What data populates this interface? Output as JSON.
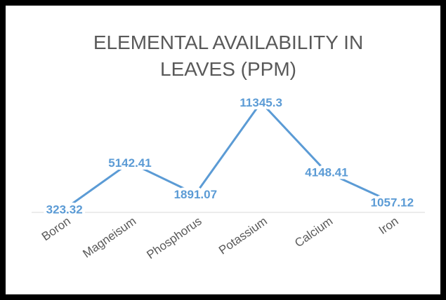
{
  "chart_data": {
    "type": "line",
    "title": [
      "ELEMENTAL AVAILABILITY IN",
      "LEAVES (PPM)"
    ],
    "categories": [
      "Boron",
      "Magneisum",
      "Phosphorus",
      "Potassium",
      "Calcium",
      "Iron"
    ],
    "values": [
      323.32,
      5142.41,
      1891.07,
      11345.3,
      4148.41,
      1057.12
    ],
    "color": "#5b9bd5"
  }
}
